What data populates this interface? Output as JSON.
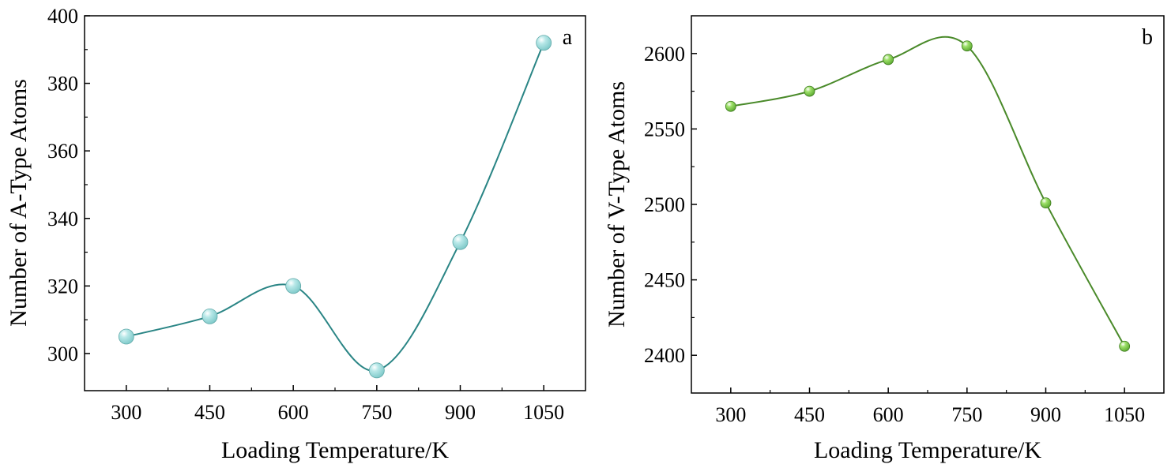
{
  "chart_data": [
    {
      "type": "line",
      "panel_label": "a",
      "xlabel": "Loading Temperature/K",
      "ylabel": "Number of A-Type Atoms",
      "x_ticks": [
        300,
        450,
        600,
        750,
        900,
        1050
      ],
      "y_ticks": [
        300,
        320,
        340,
        360,
        380,
        400
      ],
      "xlim": [
        225,
        1125
      ],
      "ylim": [
        289,
        400
      ],
      "grid": false,
      "line_color": "#2a8585",
      "marker_color": "#a8e0e0",
      "series": [
        {
          "x": [
            300,
            450,
            600,
            750,
            900,
            1050
          ],
          "values": [
            305,
            311,
            320,
            295,
            333,
            392
          ]
        }
      ]
    },
    {
      "type": "line",
      "panel_label": "b",
      "xlabel": "Loading Temperature/K",
      "ylabel": "Number of V-Type Atoms",
      "x_ticks": [
        300,
        450,
        600,
        750,
        900,
        1050
      ],
      "y_ticks": [
        2400,
        2450,
        2500,
        2550,
        2600
      ],
      "xlim": [
        225,
        1125
      ],
      "ylim": [
        2375,
        2625
      ],
      "grid": false,
      "line_color": "#4a8a2a",
      "marker_color": "#8fd45a",
      "series": [
        {
          "x": [
            300,
            450,
            600,
            750,
            900,
            1050
          ],
          "values": [
            2565,
            2575,
            2596,
            2605,
            2501,
            2406
          ]
        }
      ]
    }
  ]
}
